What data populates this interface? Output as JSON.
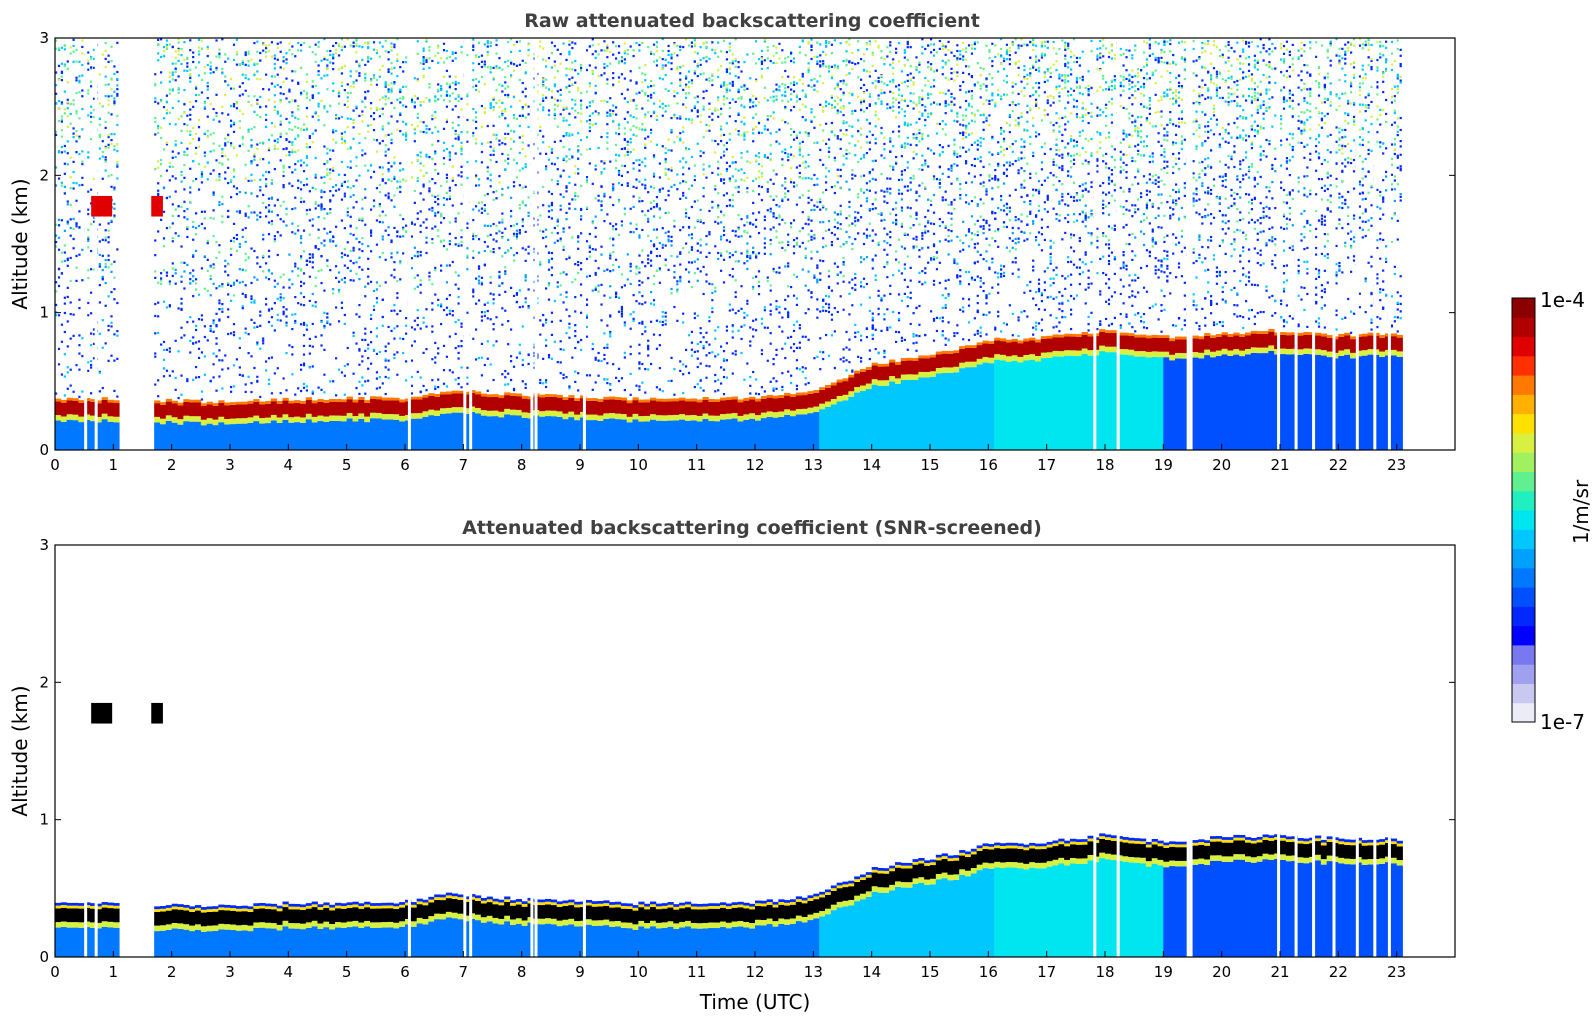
{
  "colorbar": {
    "label": "1/m/sr",
    "max_label": "1e-4",
    "min_label": "1e-7",
    "colors": [
      "#ececf8",
      "#c8c8f0",
      "#a0a0f0",
      "#7878f0",
      "#0000ff",
      "#0028ff",
      "#0050ff",
      "#0078ff",
      "#00a0ff",
      "#00c8ff",
      "#00e6f0",
      "#20f0c0",
      "#60f090",
      "#a0f060",
      "#d8f040",
      "#ffe000",
      "#ffb000",
      "#ff7800",
      "#ff3000",
      "#e00000",
      "#b00000",
      "#8b0000"
    ]
  },
  "chart_data": [
    {
      "type": "heatmap",
      "title": "Raw attenuated backscattering coefficient",
      "xlabel": "",
      "ylabel": "Altitude (km)",
      "xlim": [
        0,
        24
      ],
      "ylim": [
        0,
        3
      ],
      "x_ticks": [
        "0",
        "1",
        "2",
        "3",
        "4",
        "5",
        "6",
        "7",
        "8",
        "9",
        "10",
        "11",
        "12",
        "13",
        "14",
        "15",
        "16",
        "17",
        "18",
        "19",
        "20",
        "21",
        "22",
        "23"
      ],
      "y_ticks": [
        "0",
        "1",
        "2",
        "3"
      ],
      "data_gap": [
        1.0,
        1.65
      ],
      "data_end": 23.1,
      "boundary_layer_top_km": {
        "time": [
          0,
          1,
          1.65,
          3,
          4,
          6,
          6.8,
          8,
          10,
          12,
          13,
          13.5,
          14,
          15,
          15.5,
          16,
          17,
          18,
          19,
          20,
          21,
          22,
          23.1
        ],
        "top": [
          0.35,
          0.35,
          0.34,
          0.33,
          0.35,
          0.36,
          0.42,
          0.38,
          0.35,
          0.36,
          0.4,
          0.5,
          0.6,
          0.68,
          0.72,
          0.78,
          0.8,
          0.85,
          0.8,
          0.83,
          0.85,
          0.82,
          0.82
        ]
      }
    },
    {
      "type": "heatmap",
      "title": "Attenuated backscattering coefficient (SNR-screened)",
      "xlabel": "Time (UTC)",
      "ylabel": "Altitude (km)",
      "xlim": [
        0,
        24
      ],
      "ylim": [
        0,
        3
      ],
      "x_ticks": [
        "0",
        "1",
        "2",
        "3",
        "4",
        "5",
        "6",
        "7",
        "8",
        "9",
        "10",
        "11",
        "12",
        "13",
        "14",
        "15",
        "16",
        "17",
        "18",
        "19",
        "20",
        "21",
        "22",
        "23"
      ],
      "y_ticks": [
        "0",
        "1",
        "2",
        "3"
      ],
      "data_gap": [
        1.0,
        1.65
      ],
      "data_end": 23.1
    }
  ]
}
